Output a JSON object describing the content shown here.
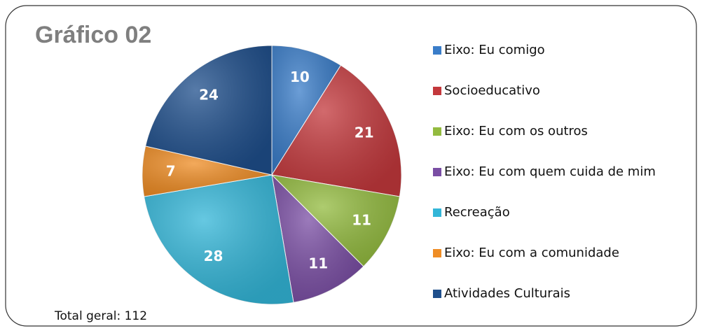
{
  "chart_data": {
    "type": "pie",
    "title": "Gráfico 02",
    "categories": [
      "Eixo: Eu comigo",
      "Socioeducativo",
      "Eixo: Eu com os outros",
      "Eixo: Eu com quem cuida de mim",
      "Recreação",
      "Eixo: Eu com a comunidade",
      "Atividades Culturais"
    ],
    "values": [
      10,
      21,
      11,
      11,
      28,
      7,
      24
    ],
    "colors": [
      "#3a7dc9",
      "#c3383c",
      "#93bb3f",
      "#7a4ea4",
      "#33b6d8",
      "#ef8d25",
      "#1f4f8c"
    ],
    "legend": "right",
    "annotation": "Total geral: 112"
  }
}
